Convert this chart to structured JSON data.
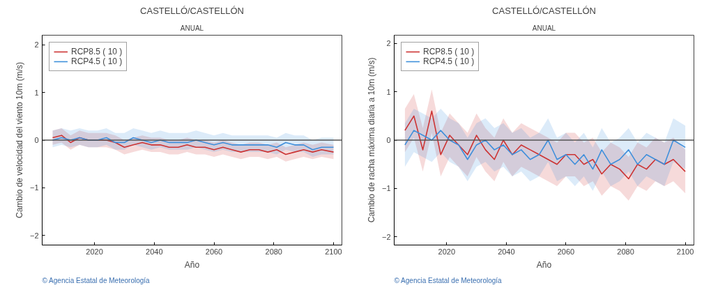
{
  "chart_data": [
    {
      "type": "line",
      "title": "CASTELLÓ/CASTELLÓN",
      "subtitle": "ANUAL",
      "xlabel": "Año",
      "ylabel": "Cambio de velocidad del viento 10m (m/s)",
      "annotations": [
        "© Agencia Estatal de Meteorología"
      ],
      "x": [
        2006,
        2009,
        2012,
        2015,
        2018,
        2021,
        2024,
        2027,
        2030,
        2033,
        2036,
        2039,
        2042,
        2045,
        2048,
        2051,
        2054,
        2057,
        2060,
        2063,
        2066,
        2069,
        2072,
        2075,
        2078,
        2081,
        2084,
        2087,
        2090,
        2093,
        2096,
        2100
      ],
      "xlim": [
        2002.5,
        2102.8
      ],
      "xticks": [
        2020,
        2040,
        2060,
        2080,
        2100
      ],
      "ylim": [
        -2.2,
        2.2
      ],
      "yticks": [
        -2,
        -1,
        0,
        1,
        2
      ],
      "legend": "top left",
      "grid": false,
      "ref_lines": [
        {
          "axis": "y",
          "value": 0,
          "color": "#555555"
        }
      ],
      "series": [
        {
          "name": "RCP8.5 ( 10 )",
          "color": "#cc3333",
          "values": [
            0.05,
            0.1,
            -0.05,
            0.05,
            0.0,
            0.0,
            0.0,
            -0.05,
            -0.15,
            -0.1,
            -0.05,
            -0.1,
            -0.1,
            -0.15,
            -0.15,
            -0.1,
            -0.15,
            -0.15,
            -0.2,
            -0.15,
            -0.2,
            -0.25,
            -0.2,
            -0.2,
            -0.25,
            -0.2,
            -0.3,
            -0.25,
            -0.2,
            -0.25,
            -0.2,
            -0.25
          ],
          "lower": [
            -0.1,
            -0.05,
            -0.2,
            -0.1,
            -0.15,
            -0.15,
            -0.15,
            -0.2,
            -0.3,
            -0.25,
            -0.2,
            -0.25,
            -0.25,
            -0.3,
            -0.3,
            -0.25,
            -0.3,
            -0.3,
            -0.35,
            -0.3,
            -0.35,
            -0.4,
            -0.35,
            -0.35,
            -0.4,
            -0.35,
            -0.45,
            -0.4,
            -0.35,
            -0.4,
            -0.35,
            -0.4
          ],
          "upper": [
            0.2,
            0.25,
            0.1,
            0.2,
            0.15,
            0.15,
            0.15,
            0.1,
            0.0,
            0.05,
            0.1,
            0.05,
            0.05,
            0.0,
            0.0,
            0.05,
            0.0,
            0.0,
            -0.05,
            0.0,
            -0.05,
            -0.1,
            -0.05,
            -0.05,
            -0.1,
            -0.05,
            -0.15,
            -0.1,
            -0.05,
            -0.1,
            -0.05,
            -0.1
          ]
        },
        {
          "name": "RCP4.5 ( 10 )",
          "color": "#3f8fdb",
          "values": [
            0.0,
            0.05,
            0.0,
            0.05,
            0.0,
            0.0,
            0.05,
            -0.05,
            -0.05,
            0.05,
            0.0,
            -0.05,
            0.0,
            -0.05,
            -0.05,
            -0.05,
            0.0,
            -0.05,
            -0.1,
            -0.05,
            -0.1,
            -0.1,
            -0.1,
            -0.1,
            -0.1,
            -0.15,
            -0.05,
            -0.1,
            -0.1,
            -0.2,
            -0.15,
            -0.15
          ],
          "lower": [
            -0.15,
            -0.1,
            -0.15,
            -0.1,
            -0.15,
            -0.15,
            -0.1,
            -0.2,
            -0.2,
            -0.1,
            -0.15,
            -0.2,
            -0.15,
            -0.2,
            -0.2,
            -0.2,
            -0.15,
            -0.2,
            -0.25,
            -0.2,
            -0.25,
            -0.25,
            -0.25,
            -0.25,
            -0.25,
            -0.3,
            -0.2,
            -0.25,
            -0.25,
            -0.35,
            -0.3,
            -0.3
          ],
          "upper": [
            0.2,
            0.25,
            0.2,
            0.25,
            0.2,
            0.2,
            0.25,
            0.15,
            0.15,
            0.25,
            0.2,
            0.15,
            0.2,
            0.15,
            0.15,
            0.15,
            0.2,
            0.15,
            0.1,
            0.15,
            0.1,
            0.1,
            0.1,
            0.1,
            0.1,
            0.05,
            0.15,
            0.1,
            0.1,
            0.0,
            0.05,
            0.05
          ]
        }
      ]
    },
    {
      "type": "line",
      "title": "CASTELLÓ/CASTELLÓN",
      "subtitle": "ANUAL",
      "xlabel": "Año",
      "ylabel": "Cambio de racha máxima diaria a 10m (m/s)",
      "annotations": [
        "© Agencia Estatal de Meteorología"
      ],
      "x": [
        2006,
        2009,
        2012,
        2015,
        2018,
        2021,
        2024,
        2027,
        2030,
        2033,
        2036,
        2039,
        2042,
        2045,
        2048,
        2051,
        2054,
        2057,
        2060,
        2063,
        2066,
        2069,
        2072,
        2075,
        2078,
        2081,
        2084,
        2087,
        2090,
        2093,
        2096,
        2100
      ],
      "xlim": [
        2002.4,
        2102.9
      ],
      "xticks": [
        2020,
        2040,
        2060,
        2080,
        2100
      ],
      "ylim": [
        -2.17,
        2.17
      ],
      "yticks": [
        -2,
        -1,
        0,
        1,
        2
      ],
      "legend": "top left",
      "grid": false,
      "ref_lines": [
        {
          "axis": "y",
          "value": 0,
          "color": "#555555"
        }
      ],
      "series": [
        {
          "name": "RCP8.5 ( 10 )",
          "color": "#cc3333",
          "values": [
            0.2,
            0.5,
            -0.2,
            0.6,
            -0.3,
            0.1,
            -0.1,
            -0.3,
            0.1,
            -0.2,
            -0.4,
            0.0,
            -0.3,
            -0.1,
            -0.2,
            -0.3,
            -0.4,
            -0.5,
            -0.3,
            -0.3,
            -0.5,
            -0.4,
            -0.7,
            -0.5,
            -0.6,
            -0.8,
            -0.5,
            -0.6,
            -0.4,
            -0.5,
            -0.4,
            -0.65
          ],
          "lower": [
            -0.25,
            0.05,
            -0.65,
            0.15,
            -0.75,
            -0.35,
            -0.55,
            -0.75,
            -0.35,
            -0.65,
            -0.85,
            -0.45,
            -0.75,
            -0.55,
            -0.65,
            -0.75,
            -0.85,
            -0.95,
            -0.75,
            -0.75,
            -0.95,
            -0.85,
            -1.15,
            -0.95,
            -1.05,
            -1.25,
            -0.95,
            -1.05,
            -0.85,
            -0.95,
            -0.85,
            -1.1
          ],
          "upper": [
            0.65,
            0.95,
            0.25,
            1.05,
            0.15,
            0.55,
            0.35,
            0.15,
            0.55,
            0.25,
            0.05,
            0.45,
            0.15,
            0.35,
            0.25,
            0.15,
            0.05,
            -0.05,
            0.15,
            0.15,
            -0.05,
            0.05,
            -0.25,
            -0.05,
            -0.15,
            -0.35,
            -0.05,
            -0.15,
            0.05,
            -0.05,
            0.05,
            -0.2
          ]
        },
        {
          "name": "RCP4.5 ( 10 )",
          "color": "#3f8fdb",
          "values": [
            -0.1,
            0.2,
            0.1,
            0.0,
            0.2,
            0.0,
            -0.1,
            -0.4,
            -0.1,
            0.0,
            -0.2,
            -0.1,
            -0.3,
            -0.2,
            -0.4,
            -0.3,
            0.0,
            -0.4,
            -0.3,
            -0.5,
            -0.3,
            -0.6,
            -0.2,
            -0.5,
            -0.4,
            -0.2,
            -0.5,
            -0.3,
            -0.4,
            -0.5,
            0.0,
            -0.15
          ],
          "lower": [
            -0.55,
            -0.25,
            -0.35,
            -0.45,
            -0.25,
            -0.45,
            -0.55,
            -0.85,
            -0.55,
            -0.45,
            -0.65,
            -0.55,
            -0.75,
            -0.65,
            -0.85,
            -0.75,
            -0.45,
            -0.85,
            -0.75,
            -0.95,
            -0.75,
            -1.05,
            -0.65,
            -0.95,
            -0.85,
            -0.65,
            -0.95,
            -0.75,
            -0.85,
            -0.95,
            -0.45,
            -0.6
          ],
          "upper": [
            0.35,
            0.65,
            0.55,
            0.45,
            0.65,
            0.45,
            0.35,
            0.05,
            0.35,
            0.45,
            0.25,
            0.35,
            0.15,
            0.25,
            0.05,
            0.15,
            0.45,
            0.05,
            0.15,
            -0.05,
            0.15,
            -0.15,
            0.25,
            -0.05,
            0.05,
            0.25,
            -0.05,
            0.15,
            0.05,
            -0.05,
            0.45,
            0.3
          ]
        }
      ]
    }
  ]
}
